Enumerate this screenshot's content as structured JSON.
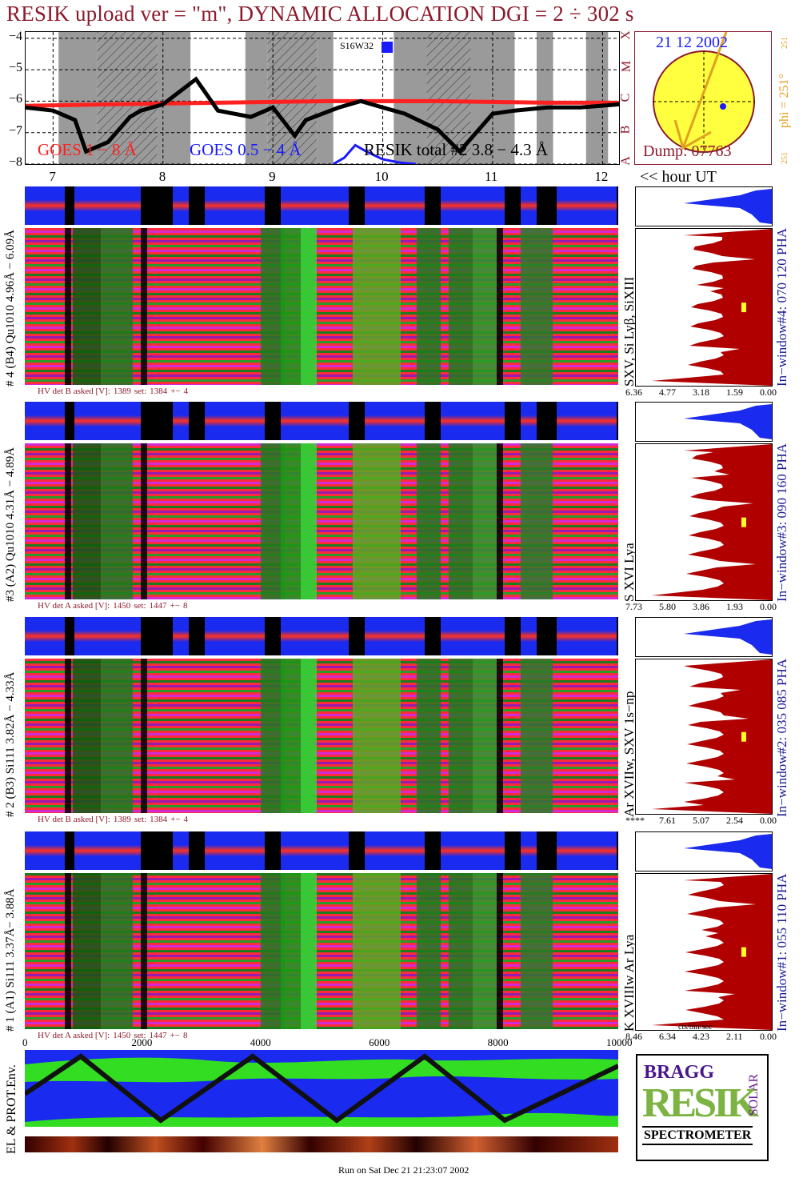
{
  "title": "RESIK upload ver = \"m\", DYNAMIC ALLOCATION  DGI =   2 ÷ 302 s",
  "goes": {
    "y_ticks": [
      "−4",
      "−5",
      "−6",
      "−7",
      "−8"
    ],
    "label_goes1": "GOES 1 − 8 Å",
    "label_goes05": "GOES 0.5 − 4 Å",
    "label_resik": "RESIK total #2  3.8 − 4.3 Å",
    "marker": "S16W32",
    "class_letters": [
      "X",
      "M",
      "C",
      "B",
      "A"
    ]
  },
  "sun": {
    "date": "21 12 2002",
    "dump": "Dump: 07763",
    "phi": "phi = 251°",
    "phi_top": "251",
    "phi_bottom": "251"
  },
  "hours": {
    "ticks": [
      "7",
      "8",
      "9",
      "10",
      "11",
      "12"
    ],
    "unit": "<< hour UT"
  },
  "channels": [
    {
      "id": "ch4",
      "side": "# 4 (B4) Qu1010 4.96Å − 6.09Å",
      "line": "SXV, Si Lyβ, SiXIII",
      "window": "In−window#4:  070 120 PHA",
      "hv": [
        "HV det B asked [V]:",
        "1389",
        "set:",
        "1384",
        "+−",
        "4"
      ],
      "hist_ticks": [
        "6.36",
        "4.77",
        "3.18",
        "1.59",
        "0.00"
      ]
    },
    {
      "id": "ch3",
      "side": "#3 (A2) Qu1010  4.31Å − 4.89Å",
      "line": "S XVI Lya",
      "window": "In−window#3:  090 160 PHA",
      "hv": [
        "HV det A asked [V]:",
        "1450",
        "set:",
        "1447",
        "+−",
        "8"
      ],
      "hist_ticks": [
        "7.73",
        "5.80",
        "3.86",
        "1.93",
        "0.00"
      ]
    },
    {
      "id": "ch2",
      "side": "# 2 (B3) Si111  3.82Å − 4.33Å",
      "line": "Ar XVIIw, SXV 1s−np",
      "window": "In−window#2:  035 085 PHA",
      "hv": [
        "HV det B asked [V]:",
        "1389",
        "set:",
        "1384",
        "+−",
        "4"
      ],
      "hist_ticks": [
        "****",
        "7.61",
        "5.07",
        "2.54",
        "0.00"
      ]
    },
    {
      "id": "ch1",
      "side": "# 1 (A1) Si111  3.37Å− 3.88Å",
      "line": "K XVIIIw  Ar Lya",
      "window": "In−window#1:  055 110 PHA",
      "hv": [
        "HV det A asked [V]:",
        "1450",
        "set:",
        "1447",
        "+−",
        "8"
      ],
      "hist_ticks": [
        "8.46",
        "6.34",
        "4.23",
        "2.11",
        "0.00"
      ],
      "hist_xlabel": "cts/bin/sec"
    }
  ],
  "counter_axis": {
    "ticks": [
      "0",
      "2000",
      "4000",
      "6000",
      "8000",
      "10000"
    ]
  },
  "env_label": "EL & PROT.Env.",
  "logo": {
    "letters_top": "BRAGG",
    "big": "RESIK",
    "solar": "SOLAR",
    "bottom": "SPECTROMETER"
  },
  "footer": "Run on Sat Dec 21 21:23:07 2002",
  "chart_data": {
    "type": "line",
    "title": "RESIK upload ver = \"m\", DYNAMIC ALLOCATION  DGI =   2 ÷ 302 s",
    "x_unit": "hour UT",
    "xlim": [
      6.75,
      12.15
    ],
    "ylabel": "",
    "ylim": [
      -8,
      -3.8
    ],
    "y_ticks": [
      -4,
      -5,
      -6,
      -7,
      -8
    ],
    "series": [
      {
        "name": "GOES 1 − 8 Å",
        "color": "#ff2020",
        "x": [
          6.75,
          7.5,
          8.5,
          9.5,
          10.5,
          11.5,
          12.15
        ],
        "y": [
          -6.15,
          -6.1,
          -6.05,
          -6.0,
          -6.0,
          -6.05,
          -6.05
        ]
      },
      {
        "name": "GOES 0.5 − 4 Å",
        "color": "#1a1aff",
        "x": [
          9.55,
          9.65,
          9.75,
          9.85,
          10.0,
          10.15,
          10.3
        ],
        "y": [
          -8.0,
          -7.8,
          -7.4,
          -7.6,
          -7.85,
          -7.95,
          -8.0
        ]
      },
      {
        "name": "RESIK total #2  3.8 − 4.3 Å",
        "color": "#000000",
        "x": [
          6.75,
          7.0,
          7.2,
          7.3,
          7.5,
          7.7,
          7.8,
          8.0,
          8.3,
          8.5,
          8.8,
          9.0,
          9.2,
          9.3,
          9.6,
          9.8,
          10.0,
          10.2,
          10.5,
          10.7,
          10.9,
          11.0,
          11.2,
          11.5,
          11.8,
          12.15
        ],
        "y": [
          -6.2,
          -6.3,
          -6.6,
          -7.6,
          -7.3,
          -6.5,
          -6.3,
          -6.1,
          -5.3,
          -6.3,
          -6.5,
          -6.2,
          -7.1,
          -6.6,
          -6.2,
          -6.0,
          -6.2,
          -6.4,
          -6.9,
          -7.6,
          -6.8,
          -6.4,
          -6.3,
          -6.2,
          -6.2,
          -6.1
        ]
      }
    ]
  },
  "colors": {
    "title": "#8b1a2b",
    "goes1": "#ff2020",
    "goes05": "#1a1aff",
    "hist_fill": "#b00000",
    "hist_top": "#1a1aff",
    "sun": "#ffff40",
    "orbit": "#111111"
  }
}
